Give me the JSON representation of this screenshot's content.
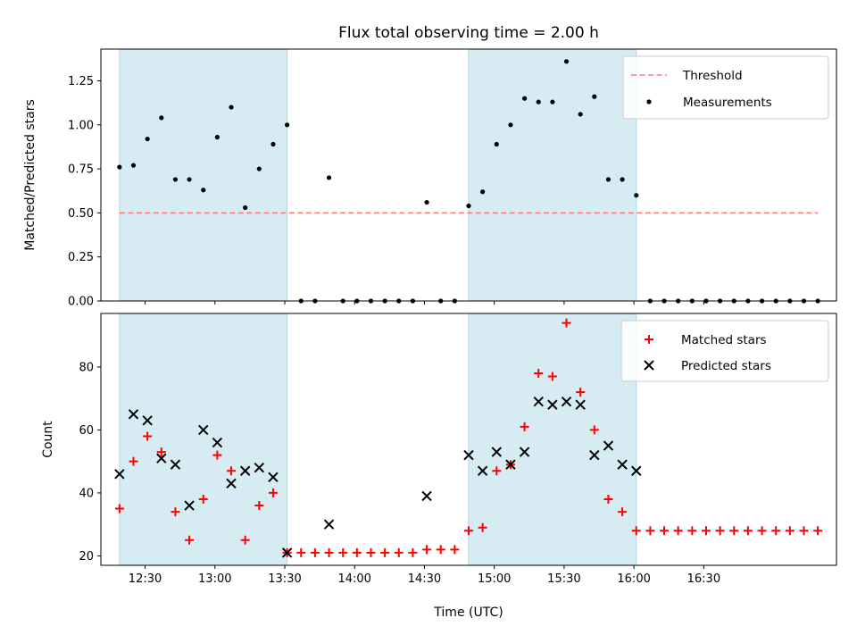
{
  "chart_data": [
    {
      "type": "scatter",
      "title": "Flux total observing time = 2.00 h",
      "xlabel": "",
      "ylabel": "Matched/Predicted stars",
      "ylim": [
        0,
        1.43
      ],
      "yticks": [
        "0.00",
        "0.25",
        "0.50",
        "0.75",
        "1.00",
        "1.25"
      ],
      "threshold": 0.5,
      "legend": [
        "Threshold",
        "Measurements"
      ],
      "legend_location": "top-right",
      "series": [
        {
          "name": "Measurements",
          "points": [
            [
              "12:19",
              0.76
            ],
            [
              "12:25",
              0.77
            ],
            [
              "12:31",
              0.92
            ],
            [
              "12:37",
              1.04
            ],
            [
              "12:43",
              0.69
            ],
            [
              "12:49",
              0.69
            ],
            [
              "12:55",
              0.63
            ],
            [
              "13:01",
              0.93
            ],
            [
              "13:07",
              1.1
            ],
            [
              "13:13",
              0.53
            ],
            [
              "13:19",
              0.75
            ],
            [
              "13:25",
              0.89
            ],
            [
              "13:31",
              1.0
            ],
            [
              "13:37",
              0.0
            ],
            [
              "13:43",
              0.0
            ],
            [
              "13:49",
              0.7
            ],
            [
              "13:55",
              0.0
            ],
            [
              "14:01",
              0.0
            ],
            [
              "14:07",
              0.0
            ],
            [
              "14:13",
              0.0
            ],
            [
              "14:19",
              0.0
            ],
            [
              "14:25",
              0.0
            ],
            [
              "14:31",
              0.56
            ],
            [
              "14:37",
              0.0
            ],
            [
              "14:43",
              0.0
            ],
            [
              "14:49",
              0.54
            ],
            [
              "14:55",
              0.62
            ],
            [
              "15:01",
              0.89
            ],
            [
              "15:07",
              1.0
            ],
            [
              "15:13",
              1.15
            ],
            [
              "15:19",
              1.13
            ],
            [
              "15:25",
              1.13
            ],
            [
              "15:31",
              1.36
            ],
            [
              "15:37",
              1.06
            ],
            [
              "15:43",
              1.16
            ],
            [
              "15:49",
              0.69
            ],
            [
              "15:55",
              0.69
            ],
            [
              "16:01",
              0.6
            ],
            [
              "16:07",
              0.0
            ],
            [
              "16:13",
              0.0
            ],
            [
              "16:19",
              0.0
            ],
            [
              "16:25",
              0.0
            ],
            [
              "16:31",
              0.0
            ],
            [
              "16:37",
              0.0
            ],
            [
              "16:43",
              0.0
            ],
            [
              "16:49",
              0.0
            ],
            [
              "16:55",
              0.0
            ],
            [
              "17:01",
              0.0
            ],
            [
              "17:07",
              0.0
            ],
            [
              "17:13",
              0.0
            ],
            [
              "17:19",
              0.0
            ]
          ]
        }
      ],
      "shaded_intervals": [
        [
          "12:19",
          "13:31"
        ],
        [
          "14:49",
          "16:01"
        ]
      ]
    },
    {
      "type": "scatter",
      "title": "",
      "xlabel": "Time (UTC)",
      "ylabel": "Count",
      "ylim": [
        17,
        97
      ],
      "yticks": [
        "20",
        "40",
        "60",
        "80"
      ],
      "xticks": [
        "12:30",
        "13:00",
        "13:30",
        "14:00",
        "14:30",
        "15:00",
        "15:30",
        "16:00",
        "16:30"
      ],
      "legend": [
        "Matched stars",
        "Predicted stars"
      ],
      "legend_location": "top-right",
      "series": [
        {
          "name": "Matched stars",
          "points": [
            [
              "12:19",
              35
            ],
            [
              "12:25",
              50
            ],
            [
              "12:31",
              58
            ],
            [
              "12:37",
              53
            ],
            [
              "12:43",
              34
            ],
            [
              "12:49",
              25
            ],
            [
              "12:55",
              38
            ],
            [
              "13:01",
              52
            ],
            [
              "13:07",
              47
            ],
            [
              "13:13",
              25
            ],
            [
              "13:19",
              36
            ],
            [
              "13:25",
              40
            ],
            [
              "13:31",
              21
            ],
            [
              "13:37",
              21
            ],
            [
              "13:43",
              21
            ],
            [
              "13:49",
              21
            ],
            [
              "13:55",
              21
            ],
            [
              "14:01",
              21
            ],
            [
              "14:07",
              21
            ],
            [
              "14:13",
              21
            ],
            [
              "14:19",
              21
            ],
            [
              "14:25",
              21
            ],
            [
              "14:31",
              22
            ],
            [
              "14:37",
              22
            ],
            [
              "14:43",
              22
            ],
            [
              "14:49",
              28
            ],
            [
              "14:55",
              29
            ],
            [
              "15:01",
              47
            ],
            [
              "15:07",
              49
            ],
            [
              "15:13",
              61
            ],
            [
              "15:19",
              78
            ],
            [
              "15:25",
              77
            ],
            [
              "15:31",
              94
            ],
            [
              "15:37",
              72
            ],
            [
              "15:43",
              60
            ],
            [
              "15:49",
              38
            ],
            [
              "15:55",
              34
            ],
            [
              "16:01",
              28
            ],
            [
              "16:07",
              28
            ],
            [
              "16:13",
              28
            ],
            [
              "16:19",
              28
            ],
            [
              "16:25",
              28
            ],
            [
              "16:31",
              28
            ],
            [
              "16:37",
              28
            ],
            [
              "16:43",
              28
            ],
            [
              "16:49",
              28
            ],
            [
              "16:55",
              28
            ],
            [
              "17:01",
              28
            ],
            [
              "17:07",
              28
            ],
            [
              "17:13",
              28
            ],
            [
              "17:19",
              28
            ]
          ]
        },
        {
          "name": "Predicted stars",
          "points": [
            [
              "12:19",
              46
            ],
            [
              "12:25",
              65
            ],
            [
              "12:31",
              63
            ],
            [
              "12:37",
              51
            ],
            [
              "12:43",
              49
            ],
            [
              "12:49",
              36
            ],
            [
              "12:55",
              60
            ],
            [
              "13:01",
              56
            ],
            [
              "13:07",
              43
            ],
            [
              "13:13",
              47
            ],
            [
              "13:19",
              48
            ],
            [
              "13:25",
              45
            ],
            [
              "13:31",
              21
            ],
            [
              "13:49",
              30
            ],
            [
              "14:31",
              39
            ],
            [
              "14:49",
              52
            ],
            [
              "14:55",
              47
            ],
            [
              "15:01",
              53
            ],
            [
              "15:07",
              49
            ],
            [
              "15:13",
              53
            ],
            [
              "15:19",
              69
            ],
            [
              "15:25",
              68
            ],
            [
              "15:31",
              69
            ],
            [
              "15:37",
              68
            ],
            [
              "15:43",
              52
            ],
            [
              "15:49",
              55
            ],
            [
              "15:55",
              49
            ],
            [
              "16:01",
              47
            ]
          ]
        }
      ],
      "shaded_intervals": [
        [
          "12:19",
          "13:31"
        ],
        [
          "14:49",
          "16:01"
        ]
      ]
    }
  ]
}
